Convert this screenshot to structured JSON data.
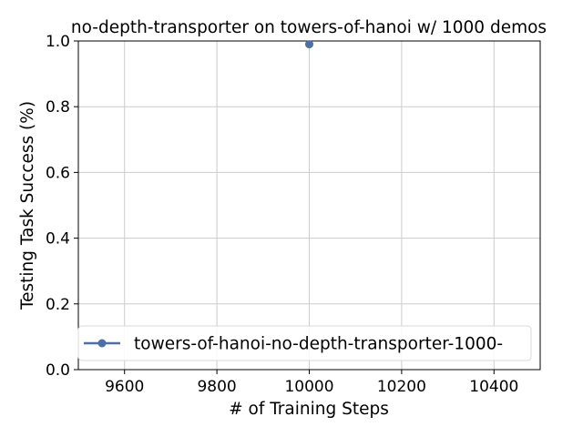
{
  "chart_data": {
    "type": "line",
    "title": "no-depth-transporter on towers-of-hanoi w/ 1000 demos",
    "xlabel": "# of Training Steps",
    "ylabel": "Testing Task Success (%)",
    "xlim": [
      9500,
      10500
    ],
    "ylim": [
      0.0,
      1.0
    ],
    "xticks": [
      9600,
      9800,
      10000,
      10200,
      10400
    ],
    "xtick_labels": [
      "9600",
      "9800",
      "10000",
      "10200",
      "10400"
    ],
    "yticks": [
      0.0,
      0.2,
      0.4,
      0.6,
      0.8,
      1.0
    ],
    "ytick_labels": [
      "0.0",
      "0.2",
      "0.4",
      "0.6",
      "0.8",
      "1.0"
    ],
    "grid": true,
    "legend_position": "lower-right",
    "series": [
      {
        "name": "towers-of-hanoi-no-depth-transporter-1000-",
        "color": "#4c6fa5",
        "marker": "circle",
        "x": [
          10000
        ],
        "y": [
          0.99
        ]
      }
    ]
  }
}
